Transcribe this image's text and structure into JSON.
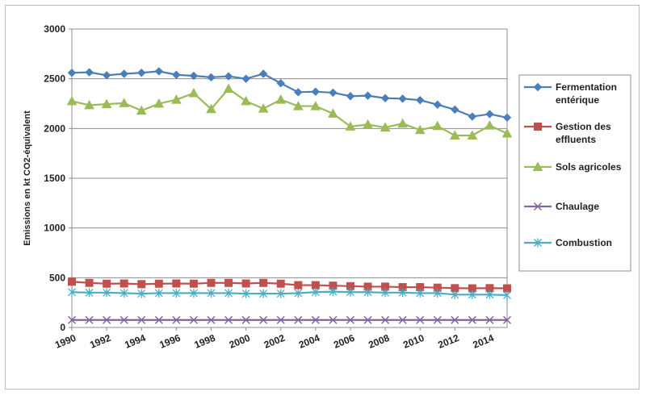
{
  "chart_data": {
    "type": "line",
    "title": "",
    "xlabel": "",
    "ylabel": "Emissions en kt CO2-équivalent",
    "ylim": [
      0,
      3000
    ],
    "yticks": [
      0,
      500,
      1000,
      1500,
      2000,
      2500,
      3000
    ],
    "xticks": [
      1990,
      1992,
      1994,
      1996,
      1998,
      2000,
      2002,
      2004,
      2006,
      2008,
      2010,
      2012,
      2014
    ],
    "x": [
      1990,
      1991,
      1992,
      1993,
      1994,
      1995,
      1996,
      1997,
      1998,
      1999,
      2000,
      2001,
      2002,
      2003,
      2004,
      2005,
      2006,
      2007,
      2008,
      2009,
      2010,
      2011,
      2012,
      2013,
      2014,
      2015
    ],
    "grid": "horizontal",
    "legend_position": "right",
    "series": [
      {
        "name": "Fermentation entérique",
        "legend_lines": [
          "Fermentation",
          "entérique"
        ],
        "color": "#4a7ebb",
        "marker": "diamond",
        "values": [
          2560,
          2565,
          2535,
          2550,
          2560,
          2575,
          2540,
          2530,
          2515,
          2525,
          2500,
          2550,
          2455,
          2365,
          2370,
          2360,
          2325,
          2330,
          2305,
          2300,
          2285,
          2240,
          2190,
          2120,
          2145,
          2110
        ]
      },
      {
        "name": "Gestion des effluents",
        "legend_lines": [
          "Gestion des",
          "effluents"
        ],
        "color": "#c0504d",
        "marker": "square",
        "values": [
          460,
          448,
          440,
          442,
          435,
          440,
          442,
          440,
          448,
          448,
          442,
          448,
          440,
          425,
          425,
          420,
          415,
          410,
          410,
          405,
          405,
          400,
          395,
          393,
          395,
          393
        ]
      },
      {
        "name": "Sols agricoles",
        "legend_lines": [
          "Sols agricoles"
        ],
        "color": "#9bbb59",
        "marker": "triangle",
        "values": [
          2275,
          2235,
          2245,
          2255,
          2180,
          2250,
          2290,
          2355,
          2195,
          2400,
          2275,
          2200,
          2290,
          2225,
          2225,
          2150,
          2020,
          2040,
          2010,
          2050,
          1985,
          2025,
          1930,
          1930,
          2030,
          1950
        ]
      },
      {
        "name": "Chaulage",
        "legend_lines": [
          "Chaulage"
        ],
        "color": "#8064a2",
        "marker": "x",
        "values": [
          75,
          75,
          75,
          75,
          75,
          75,
          75,
          75,
          75,
          75,
          75,
          75,
          75,
          75,
          75,
          75,
          75,
          75,
          75,
          75,
          75,
          75,
          75,
          75,
          75,
          75
        ]
      },
      {
        "name": "Combustion",
        "legend_lines": [
          "Combustion"
        ],
        "color": "#4bacc6",
        "marker": "star",
        "values": [
          355,
          350,
          350,
          345,
          340,
          345,
          345,
          345,
          345,
          345,
          340,
          340,
          340,
          345,
          355,
          360,
          355,
          355,
          350,
          350,
          345,
          345,
          330,
          330,
          330,
          325
        ]
      }
    ]
  }
}
